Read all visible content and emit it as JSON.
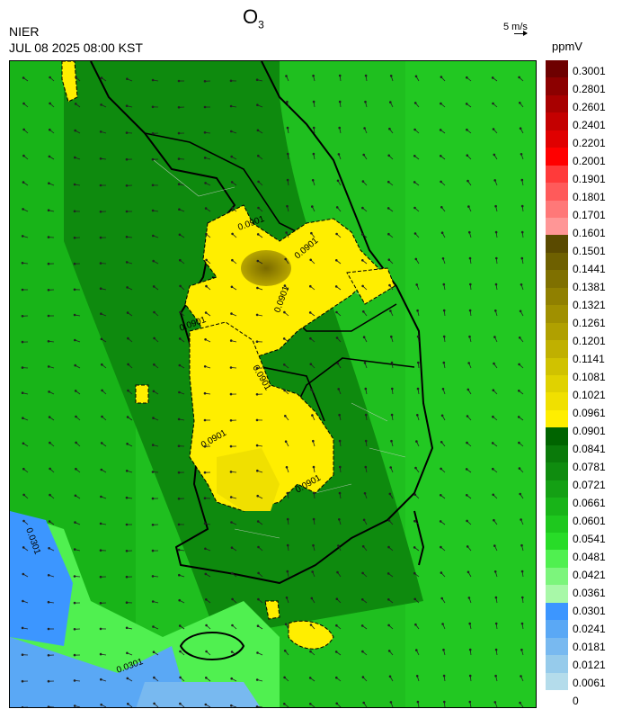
{
  "header": {
    "title_main": "O",
    "title_sub": "3",
    "agency": "NIER",
    "datetime": "JUL 08 2025 08:00 KST",
    "wind_reference": "5 m/s",
    "unit": "ppmV"
  },
  "legend": {
    "labels": [
      "0.3001",
      "0.2801",
      "0.2601",
      "0.2401",
      "0.2201",
      "0.2001",
      "0.1901",
      "0.1801",
      "0.1701",
      "0.1601",
      "0.1501",
      "0.1441",
      "0.1381",
      "0.1321",
      "0.1261",
      "0.1201",
      "0.1141",
      "0.1081",
      "0.1021",
      "0.0961",
      "0.0901",
      "0.0841",
      "0.0781",
      "0.0721",
      "0.0661",
      "0.0601",
      "0.0541",
      "0.0481",
      "0.0421",
      "0.0361",
      "0.0301",
      "0.0241",
      "0.0181",
      "0.0121",
      "0.0061",
      "0"
    ],
    "colors": [
      "#6e0000",
      "#8c0000",
      "#a80000",
      "#c40000",
      "#e00000",
      "#ff0000",
      "#ff3a3a",
      "#ff5a5a",
      "#ff7878",
      "#ff9696",
      "#5a4a00",
      "#6e6000",
      "#7f7000",
      "#908000",
      "#a09000",
      "#b0a000",
      "#c0b000",
      "#d0c200",
      "#e0d200",
      "#f0e000",
      "#ffee00",
      "#006400",
      "#0a7a0a",
      "#0f8c0f",
      "#14a014",
      "#18b418",
      "#1ec81e",
      "#28dc28",
      "#50f050",
      "#7cf57c",
      "#a8f8a8",
      "#3c96ff",
      "#5aa8f5",
      "#78b9f0",
      "#96cbeb",
      "#b4dceb"
    ]
  },
  "contour_labels": [
    "0.0301",
    "0.0301",
    "0.0901",
    "0.0901",
    "0.0901",
    "0.0901",
    "0.0901",
    "0.0901",
    "0.0901"
  ]
}
